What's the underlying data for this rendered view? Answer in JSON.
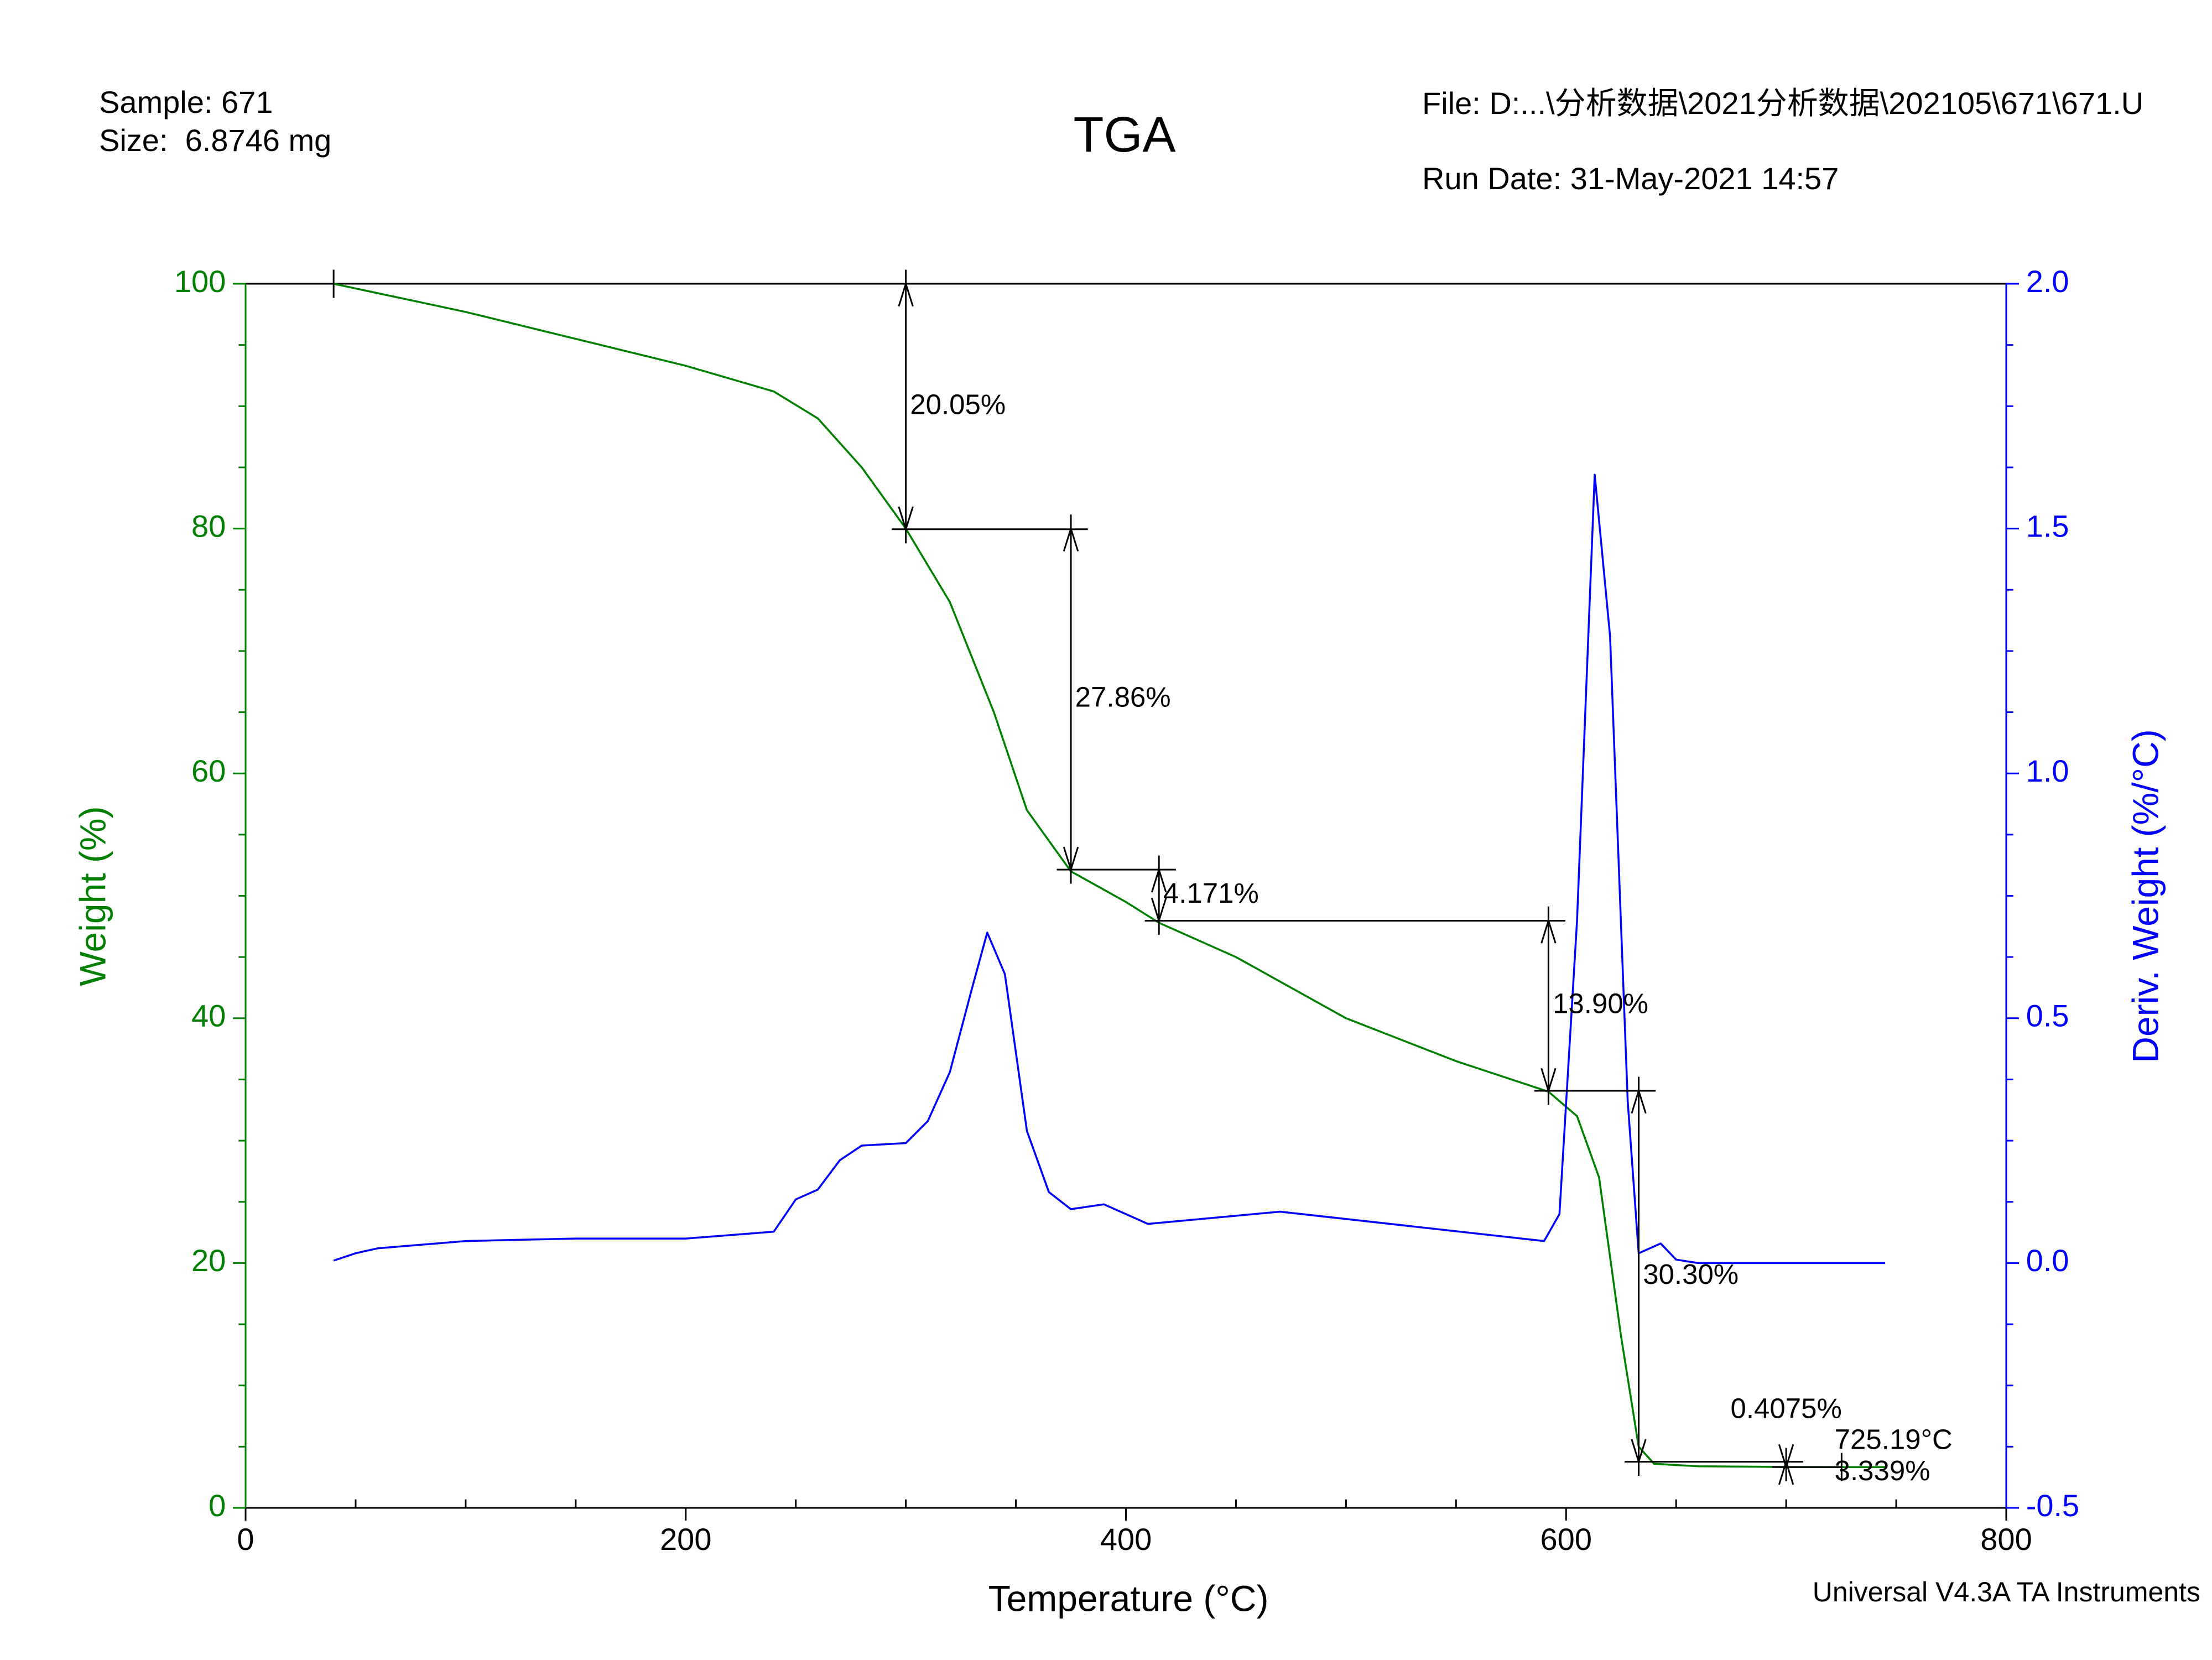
{
  "header": {
    "sample": "Sample: 671",
    "size": "Size:  6.8746 mg",
    "file": "File: D:...\\分析数据\\2021分析数据\\202105\\671\\671.U",
    "run_date": "Run Date: 31-May-2021 14:57",
    "footer": "Universal V4.3A TA Instruments"
  },
  "chart_data": {
    "type": "line",
    "title": "TGA",
    "xlabel": "Temperature (°C)",
    "ylabel": "Weight (%)",
    "y2label": "Deriv. Weight (%/°C)",
    "ylabel_color": "#008000",
    "y2label_color": "#0000ff",
    "xlim": [
      0,
      800
    ],
    "xticks": [
      0,
      200,
      400,
      600,
      800
    ],
    "xminorticks": [
      50,
      100,
      150,
      250,
      300,
      350,
      450,
      500,
      550,
      650,
      700,
      750
    ],
    "ylim": [
      0,
      100
    ],
    "yticks": [
      0,
      20,
      40,
      60,
      80,
      100
    ],
    "yminorticks": [
      5,
      10,
      15,
      25,
      30,
      35,
      45,
      50,
      55,
      65,
      70,
      75,
      85,
      90,
      95
    ],
    "y2lim": [
      -0.5,
      2.0
    ],
    "y2ticks": [
      -0.5,
      {
        "value": 0,
        "label": "0.0"
      },
      0.5,
      {
        "value": 1,
        "label": "1.0"
      },
      1.5,
      {
        "value": 2,
        "label": "2.0"
      }
    ],
    "y2minorticks": [
      -0.375,
      -0.25,
      -0.125,
      0.125,
      0.25,
      0.375,
      0.625,
      0.75,
      0.875,
      1.125,
      1.25,
      1.375,
      1.625,
      1.75,
      1.875
    ],
    "series": [
      {
        "color": "#008000",
        "x": [
          40,
          100,
          150,
          200,
          240,
          260,
          280,
          300,
          320,
          340,
          355,
          375,
          400,
          415,
          450,
          500,
          550,
          592,
          605,
          615,
          625,
          633,
          640,
          660,
          700,
          725,
          745
        ],
        "values": [
          100,
          97.7,
          95.5,
          93.3,
          91.2,
          89,
          85,
          80,
          74,
          65,
          57,
          52,
          49.5,
          47.8,
          45,
          40,
          36.5,
          34,
          32,
          27,
          14,
          5,
          3.6,
          3.4,
          3.34,
          3.33,
          3.33
        ]
      },
      {
        "color": "#0000ff",
        "axis": "y2",
        "x": [
          40,
          50,
          60,
          100,
          150,
          200,
          240,
          250,
          260,
          270,
          280,
          300,
          310,
          320,
          330,
          337,
          345,
          355,
          365,
          375,
          390,
          410,
          470,
          500,
          590,
          597,
          605,
          613,
          620,
          628,
          633,
          643,
          650,
          660,
          745
        ],
        "values": [
          0.005,
          0.02,
          0.03,
          0.045,
          0.05,
          0.05,
          0.064,
          0.13,
          0.15,
          0.21,
          0.24,
          0.245,
          0.29,
          0.39,
          0.56,
          0.675,
          0.59,
          0.27,
          0.145,
          0.11,
          0.12,
          0.08,
          0.105,
          0.09,
          0.045,
          0.1,
          0.7,
          1.61,
          1.28,
          0.33,
          0.02,
          0.04,
          0.007,
          0,
          0
        ]
      }
    ],
    "steps": [
      {
        "label": "20.05%",
        "x": 300,
        "from": 100,
        "to": 79.95
      },
      {
        "label": "27.86%",
        "x": 375,
        "from": 80,
        "to": 52.14
      },
      {
        "label": "4.171%",
        "x": 415,
        "from": 52.14,
        "to": 47.969
      },
      {
        "label": "13.90%",
        "x": 592,
        "from": 47.97,
        "to": 34.07
      },
      {
        "label": "30.30%",
        "x": 633,
        "from": 34.07,
        "to": 3.77
      },
      {
        "label": "0.4075%",
        "x": 700,
        "from": 3.746,
        "to": 3.3385
      }
    ],
    "end_point": {
      "x": 725.19,
      "y": 3.339,
      "label_x": "725.19°C",
      "label_y": "3.339%"
    }
  }
}
